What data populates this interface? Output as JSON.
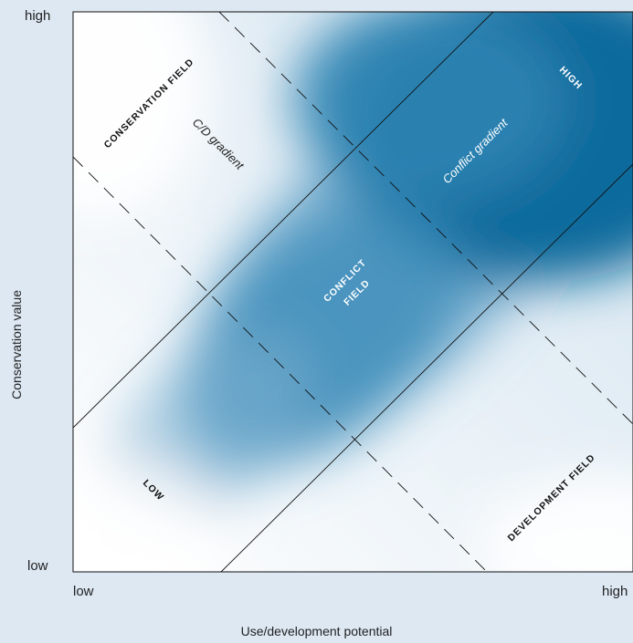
{
  "y_axis": {
    "label": "Conservation value",
    "high": "high",
    "low": "low"
  },
  "x_axis": {
    "label": "Use/development potential",
    "high": "high",
    "low": "low"
  },
  "fields": {
    "conservation": "CONSERVATION FIELD",
    "conflict_line1": "CONFLICT",
    "conflict_line2": "FIELD",
    "development": "DEVELOPMENT FIELD"
  },
  "gradients": {
    "cd": "C/D gradient",
    "conflict": "Conflict gradient"
  },
  "levels": {
    "high": "HIGH",
    "low": "LOW"
  },
  "colors": {
    "background": "#dde8f3",
    "plot_light": "#ffffff",
    "plot_dark": "#0a6a9c",
    "line": "#111111"
  }
}
